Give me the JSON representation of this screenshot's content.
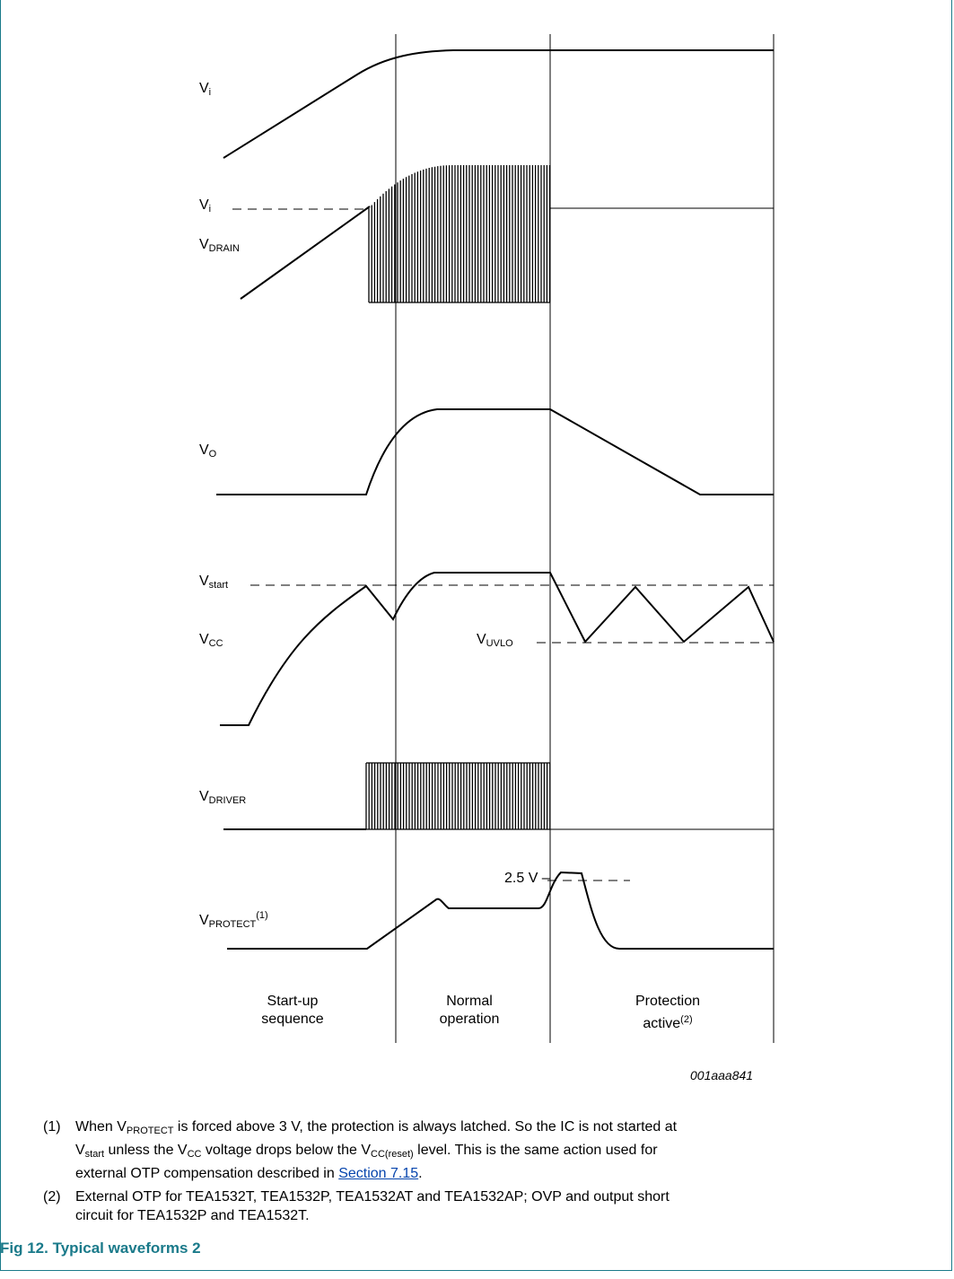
{
  "signals": {
    "vi": {
      "main": "V",
      "sub": "i"
    },
    "vi_ref": {
      "main": "V",
      "sub": "i"
    },
    "vdrain": {
      "main": "V",
      "sub": "DRAIN"
    },
    "vo": {
      "main": "V",
      "sub": "O"
    },
    "vstart": {
      "main": "V",
      "sub": "start"
    },
    "vcc": {
      "main": "V",
      "sub": "CC"
    },
    "vuvlo": {
      "main": "V",
      "sub": "UVLO"
    },
    "vdriver": {
      "main": "V",
      "sub": "DRIVER"
    },
    "vprotect": {
      "main": "V",
      "sub": "PROTECT",
      "sup": "(1)"
    },
    "level_25": "2.5 V"
  },
  "phases": {
    "startup": {
      "line1": "Start-up",
      "line2": "sequence"
    },
    "normal": {
      "line1": "Normal",
      "line2": "operation"
    },
    "protection": {
      "line1": "Protection",
      "line2": "active",
      "sup": "(2)"
    }
  },
  "figure_code": "001aaa841",
  "notes": {
    "n1": {
      "num": "(1)",
      "p1": "When V",
      "p1_sub": "PROTECT",
      "p2": " is forced above 3 V, the protection is always latched. So the IC is not started at",
      "p3": "V",
      "p3_sub": "start",
      "p4": " unless the V",
      "p4_sub": "CC",
      "p5": " voltage drops below the V",
      "p5_sub": "CC(reset)",
      "p6": " level. This is the same action used for",
      "p7": "external OTP compensation described in ",
      "link": "Section 7.15",
      "p8": "."
    },
    "n2": {
      "num": "(2)",
      "line1": "External OTP for TEA1532T, TEA1532P, TEA1532AT and TEA1532AP; OVP and output short",
      "line2": "circuit for TEA1532P and TEA1532T."
    }
  },
  "figure_title": "Fig 12.  Typical waveforms 2",
  "colors": {
    "frame": "#1a7a8a",
    "title": "#1a7a8a",
    "link": "#0645ad"
  }
}
